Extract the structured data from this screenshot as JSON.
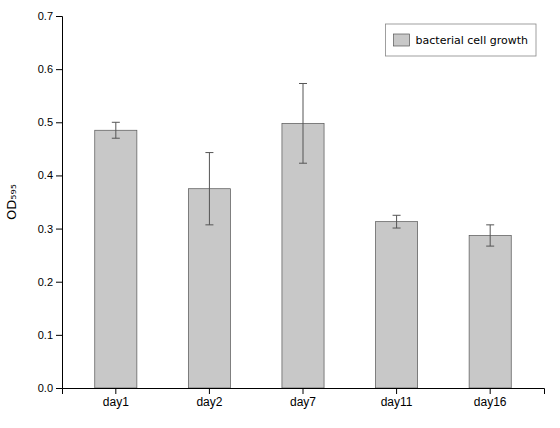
{
  "chart_data": {
    "type": "bar",
    "categories": [
      "day1",
      "day2",
      "day7",
      "day11",
      "day16"
    ],
    "series": [
      {
        "name": "bacterial cell growth",
        "color": "#c8c8c8",
        "values": [
          0.485,
          0.375,
          0.498,
          0.313,
          0.287
        ],
        "errors": [
          0.015,
          0.068,
          0.075,
          0.012,
          0.02
        ]
      }
    ],
    "ylabel": "OD₅₉₅",
    "ylim": [
      0.0,
      0.7
    ],
    "yticks": [
      {
        "value": 0.0,
        "label": "0.0"
      },
      0.1,
      0.2,
      0.3,
      0.4,
      0.5,
      0.6,
      0.7
    ],
    "grid": false,
    "legend": "upper right"
  }
}
